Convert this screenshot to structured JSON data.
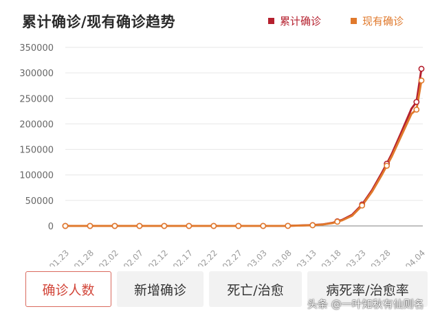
{
  "header": {
    "title": "累计确诊/现有确诊趋势",
    "legend": [
      {
        "label": "累计确诊",
        "color": "#b5202e"
      },
      {
        "label": "现有确诊",
        "color": "#e0792c"
      }
    ]
  },
  "chart_data": {
    "type": "line",
    "title": "累计确诊/现有确诊趋势",
    "xlabel": "",
    "ylabel": "",
    "categories": [
      "01.23",
      "01.28",
      "02.02",
      "02.07",
      "02.12",
      "02.17",
      "02.22",
      "02.27",
      "03.03",
      "03.08",
      "03.13",
      "03.18",
      "03.23",
      "03.28",
      "04.04"
    ],
    "x": [
      0,
      5,
      10,
      15,
      20,
      25,
      30,
      35,
      40,
      45,
      50,
      55,
      60,
      65,
      72
    ],
    "ylim": [
      0,
      350000
    ],
    "yticks": [
      0,
      50000,
      100000,
      150000,
      200000,
      250000,
      300000,
      350000
    ],
    "ytick_labels": [
      "0",
      "50000",
      "100000",
      "150000",
      "200000",
      "250000",
      "300000",
      "350000"
    ],
    "grid": true,
    "series": [
      {
        "name": "累计确诊",
        "color": "#b5202e",
        "x": [
          0,
          5,
          10,
          15,
          20,
          25,
          30,
          35,
          40,
          45,
          50,
          52,
          54,
          55,
          56,
          58,
          60,
          62,
          64,
          65,
          66,
          68,
          70,
          71,
          72
        ],
        "values": [
          0,
          0,
          0,
          0,
          0,
          0,
          0,
          0,
          0,
          200,
          1600,
          3000,
          6000,
          9000,
          12000,
          22000,
          42000,
          70000,
          104000,
          122000,
          141000,
          185000,
          230000,
          243000,
          308000
        ],
        "markers": [
          0,
          5,
          10,
          15,
          20,
          25,
          30,
          35,
          40,
          45,
          50,
          55,
          60,
          65,
          71,
          72
        ]
      },
      {
        "name": "现有确诊",
        "color": "#e0792c",
        "x": [
          0,
          5,
          10,
          15,
          20,
          25,
          30,
          35,
          40,
          45,
          50,
          52,
          54,
          55,
          56,
          58,
          60,
          62,
          64,
          65,
          66,
          68,
          70,
          71,
          72
        ],
        "values": [
          0,
          0,
          0,
          0,
          0,
          0,
          0,
          0,
          0,
          150,
          1400,
          2700,
          5500,
          8300,
          11000,
          20000,
          40000,
          67000,
          100000,
          118000,
          136000,
          178000,
          220000,
          228000,
          285000
        ],
        "markers": [
          0,
          5,
          10,
          15,
          20,
          25,
          30,
          35,
          40,
          45,
          50,
          55,
          60,
          65,
          71,
          72
        ]
      }
    ]
  },
  "tabs": [
    {
      "label": "确诊人数",
      "active": true
    },
    {
      "label": "新增确诊",
      "active": false
    },
    {
      "label": "死亡/治愈",
      "active": false
    },
    {
      "label": "病死率/治愈率",
      "active": false
    }
  ],
  "watermark": "头条 @一叶知秋有仙则名"
}
